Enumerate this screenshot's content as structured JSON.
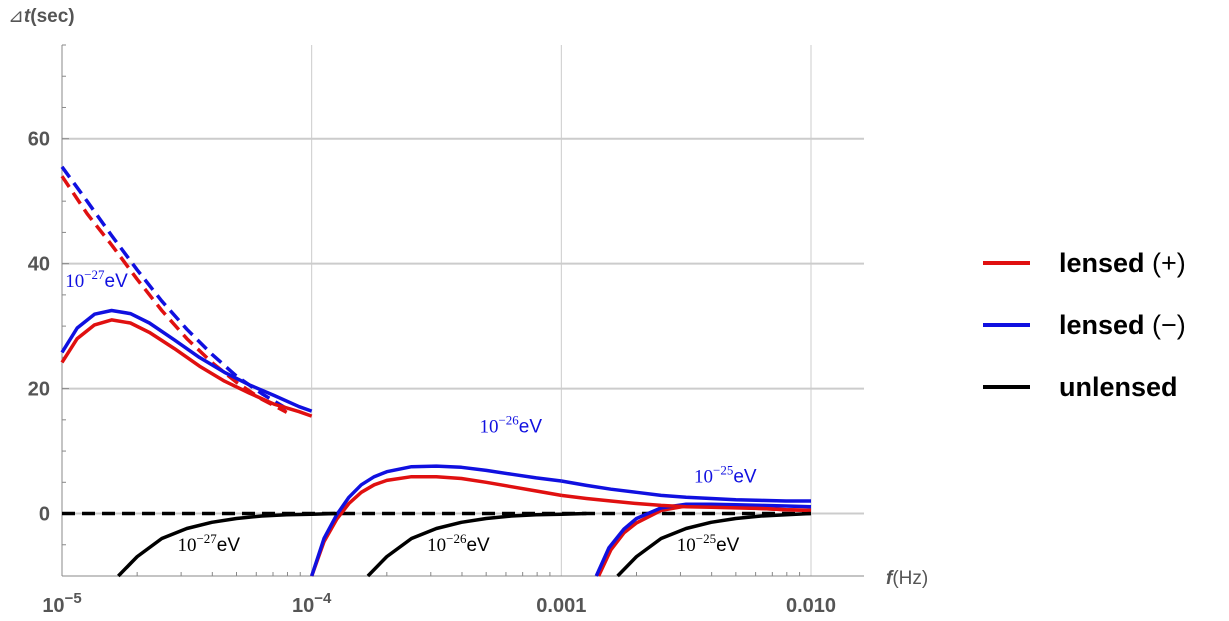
{
  "chart_data": {
    "type": "line",
    "x_scale": "log",
    "xlim": [
      1e-05,
      0.01
    ],
    "ylim": [
      -10,
      75
    ],
    "grid": true,
    "legend_position": "right",
    "xlabel": {
      "var": "f",
      "unit": "(Hz)"
    },
    "ylabel": {
      "prefix": "⊿",
      "var": "t",
      "unit": "(sec)"
    },
    "x_ticks": [
      {
        "value": 1e-05,
        "base": "10",
        "exp": "−5"
      },
      {
        "value": 0.0001,
        "base": "10",
        "exp": "−4"
      },
      {
        "value": 0.001,
        "label": "0.001"
      },
      {
        "value": 0.01,
        "label": "0.010"
      }
    ],
    "y_ticks": [
      {
        "value": 0,
        "label": "0"
      },
      {
        "value": 20,
        "label": "20"
      },
      {
        "value": 40,
        "label": "40"
      },
      {
        "value": 60,
        "label": "60"
      }
    ],
    "colors": {
      "lensed_plus": "#e01010",
      "lensed_minus": "#1010e0",
      "unlensed": "#000000",
      "grid": "#cccccc",
      "axis": "#888888"
    },
    "legend": [
      {
        "series": "lensed_plus",
        "name": "lensed",
        "sign": "(+)"
      },
      {
        "series": "lensed_minus",
        "name": "lensed",
        "sign": "(−)"
      },
      {
        "series": "unlensed",
        "name": "unlensed",
        "sign": ""
      }
    ],
    "series": [
      {
        "id": "plus-dashed",
        "group": "lensed_plus",
        "dashed": true,
        "points": [
          [
            1e-05,
            54
          ],
          [
            1.26e-05,
            48
          ],
          [
            1.58e-05,
            43
          ],
          [
            2e-05,
            37.5
          ],
          [
            2.51e-05,
            32.5
          ],
          [
            3.16e-05,
            28
          ],
          [
            3.98e-05,
            24.2
          ],
          [
            5e-05,
            21
          ],
          [
            6.31e-05,
            18.3
          ],
          [
            7.94e-05,
            16.2
          ]
        ]
      },
      {
        "id": "minus-dashed",
        "group": "lensed_minus",
        "dashed": true,
        "points": [
          [
            1e-05,
            55.5
          ],
          [
            1.26e-05,
            50
          ],
          [
            1.58e-05,
            44.5
          ],
          [
            2e-05,
            39
          ],
          [
            2.51e-05,
            34
          ],
          [
            3.16e-05,
            29.5
          ],
          [
            3.98e-05,
            25.5
          ],
          [
            5e-05,
            22
          ],
          [
            6.31e-05,
            19.2
          ],
          [
            7.94e-05,
            16.8
          ]
        ]
      },
      {
        "id": "unlensed-dashed",
        "group": "unlensed",
        "dashed": true,
        "points": [
          [
            1e-05,
            0
          ],
          [
            0.01,
            0
          ]
        ]
      },
      {
        "id": "plus-27",
        "group": "lensed_plus",
        "dashed": false,
        "points": [
          [
            1e-05,
            24.2
          ],
          [
            1.15e-05,
            28
          ],
          [
            1.35e-05,
            30.2
          ],
          [
            1.58e-05,
            31
          ],
          [
            1.88e-05,
            30.5
          ],
          [
            2.24e-05,
            29
          ],
          [
            2.82e-05,
            26.4
          ],
          [
            3.55e-05,
            23.6
          ],
          [
            4.47e-05,
            21.2
          ],
          [
            5.62e-05,
            19.3
          ],
          [
            7.08e-05,
            17.5
          ],
          [
            8.91e-05,
            16.3
          ],
          [
            0.0001,
            15.6
          ]
        ]
      },
      {
        "id": "minus-27",
        "group": "lensed_minus",
        "dashed": false,
        "points": [
          [
            1e-05,
            25.8
          ],
          [
            1.15e-05,
            29.7
          ],
          [
            1.35e-05,
            31.9
          ],
          [
            1.58e-05,
            32.5
          ],
          [
            1.88e-05,
            32
          ],
          [
            2.24e-05,
            30.5
          ],
          [
            2.82e-05,
            27.8
          ],
          [
            3.55e-05,
            25
          ],
          [
            4.47e-05,
            22.6
          ],
          [
            5.62e-05,
            20.6
          ],
          [
            7.08e-05,
            18.9
          ],
          [
            8.91e-05,
            17.1
          ],
          [
            0.0001,
            16.4
          ]
        ]
      },
      {
        "id": "plus-26",
        "group": "lensed_plus",
        "dashed": false,
        "points": [
          [
            0.0001,
            -10
          ],
          [
            0.000112,
            -4.5
          ],
          [
            0.000126,
            -0.9
          ],
          [
            0.000141,
            1.6
          ],
          [
            0.000158,
            3.4
          ],
          [
            0.000178,
            4.6
          ],
          [
            0.0002,
            5.3
          ],
          [
            0.000251,
            5.9
          ],
          [
            0.000316,
            5.9
          ],
          [
            0.000398,
            5.6
          ],
          [
            0.0005,
            5
          ],
          [
            0.000631,
            4.3
          ],
          [
            0.000794,
            3.6
          ],
          [
            0.001,
            2.9
          ]
        ]
      },
      {
        "id": "minus-26",
        "group": "lensed_minus",
        "dashed": false,
        "points": [
          [
            0.0001,
            -10
          ],
          [
            0.000112,
            -4
          ],
          [
            0.000126,
            -0.2
          ],
          [
            0.000141,
            2.6
          ],
          [
            0.000158,
            4.6
          ],
          [
            0.000178,
            5.9
          ],
          [
            0.0002,
            6.7
          ],
          [
            0.000251,
            7.5
          ],
          [
            0.000316,
            7.6
          ],
          [
            0.000398,
            7.4
          ],
          [
            0.0005,
            6.9
          ],
          [
            0.000631,
            6.3
          ],
          [
            0.000794,
            5.7
          ],
          [
            0.001,
            5.2
          ]
        ]
      },
      {
        "id": "plus-25",
        "group": "lensed_plus",
        "dashed": false,
        "points": [
          [
            0.00141,
            -10
          ],
          [
            0.00158,
            -5.8
          ],
          [
            0.00178,
            -3.1
          ],
          [
            0.002,
            -1.5
          ],
          [
            0.00251,
            0.5
          ],
          [
            0.00316,
            1.2
          ],
          [
            0.00398,
            1.2
          ],
          [
            0.005,
            1
          ],
          [
            0.00631,
            0.8
          ],
          [
            0.00794,
            0.6
          ],
          [
            0.01,
            0.5
          ]
        ]
      },
      {
        "id": "minus-25",
        "group": "lensed_minus",
        "dashed": false,
        "points": [
          [
            0.00138,
            -10
          ],
          [
            0.00155,
            -5.5
          ],
          [
            0.00178,
            -2.5
          ],
          [
            0.002,
            -0.8
          ],
          [
            0.00251,
            0.9
          ],
          [
            0.00316,
            1.5
          ],
          [
            0.00398,
            1.5
          ],
          [
            0.005,
            1.4
          ],
          [
            0.00631,
            1.3
          ],
          [
            0.00794,
            1.2
          ],
          [
            0.01,
            1.1
          ]
        ]
      },
      {
        "id": "plus-tail",
        "group": "lensed_plus",
        "dashed": false,
        "points": [
          [
            0.001,
            2.9
          ],
          [
            0.00126,
            2.4
          ],
          [
            0.00158,
            2
          ],
          [
            0.002,
            1.6
          ],
          [
            0.00251,
            1.3
          ],
          [
            0.00316,
            1.1
          ],
          [
            0.00398,
            1
          ],
          [
            0.005,
            0.9
          ],
          [
            0.00631,
            0.8
          ],
          [
            0.00794,
            0.6
          ],
          [
            0.01,
            0.5
          ]
        ]
      },
      {
        "id": "minus-tail",
        "group": "lensed_minus",
        "dashed": false,
        "points": [
          [
            0.001,
            5.2
          ],
          [
            0.00126,
            4.5
          ],
          [
            0.00158,
            3.9
          ],
          [
            0.002,
            3.4
          ],
          [
            0.00251,
            2.9
          ],
          [
            0.00316,
            2.6
          ],
          [
            0.00398,
            2.4
          ],
          [
            0.005,
            2.2
          ],
          [
            0.00631,
            2.1
          ],
          [
            0.00794,
            2
          ],
          [
            0.01,
            2
          ]
        ]
      },
      {
        "id": "unlensed-27",
        "group": "unlensed",
        "dashed": false,
        "points": [
          [
            1.68e-05,
            -10
          ],
          [
            2e-05,
            -6.9
          ],
          [
            2.51e-05,
            -4
          ],
          [
            3.16e-05,
            -2.4
          ],
          [
            3.98e-05,
            -1.4
          ],
          [
            5e-05,
            -0.8
          ],
          [
            6.31e-05,
            -0.4
          ],
          [
            7.94e-05,
            -0.2
          ],
          [
            0.0001,
            -0.1
          ],
          [
            0.000126,
            0
          ]
        ]
      },
      {
        "id": "unlensed-26",
        "group": "unlensed",
        "dashed": false,
        "points": [
          [
            0.000168,
            -10
          ],
          [
            0.0002,
            -6.9
          ],
          [
            0.000251,
            -4
          ],
          [
            0.000316,
            -2.4
          ],
          [
            0.000398,
            -1.4
          ],
          [
            0.0005,
            -0.8
          ],
          [
            0.000631,
            -0.4
          ],
          [
            0.000794,
            -0.2
          ],
          [
            0.001,
            -0.1
          ],
          [
            0.00126,
            0
          ]
        ]
      },
      {
        "id": "unlensed-25",
        "group": "unlensed",
        "dashed": false,
        "points": [
          [
            0.00168,
            -10
          ],
          [
            0.002,
            -6.9
          ],
          [
            0.00251,
            -4
          ],
          [
            0.00316,
            -2.4
          ],
          [
            0.00398,
            -1.4
          ],
          [
            0.005,
            -0.8
          ],
          [
            0.00631,
            -0.4
          ],
          [
            0.00794,
            -0.2
          ],
          [
            0.01,
            0
          ]
        ]
      }
    ],
    "annotations": [
      {
        "base": "10",
        "exp": "−27",
        "unit": "eV",
        "x": 1.03e-05,
        "y": 36.3,
        "group": "lensed_minus"
      },
      {
        "base": "10",
        "exp": "−26",
        "unit": "eV",
        "x": 0.00047,
        "y": 13,
        "group": "lensed_minus"
      },
      {
        "base": "10",
        "exp": "−25",
        "unit": "eV",
        "x": 0.0034,
        "y": 5,
        "group": "lensed_minus"
      },
      {
        "base": "10",
        "exp": "−27",
        "unit": "eV",
        "x": 2.9e-05,
        "y": -6,
        "group": "unlensed"
      },
      {
        "base": "10",
        "exp": "−26",
        "unit": "eV",
        "x": 0.00029,
        "y": -6,
        "group": "unlensed"
      },
      {
        "base": "10",
        "exp": "−25",
        "unit": "eV",
        "x": 0.0029,
        "y": -6,
        "group": "unlensed"
      }
    ]
  }
}
